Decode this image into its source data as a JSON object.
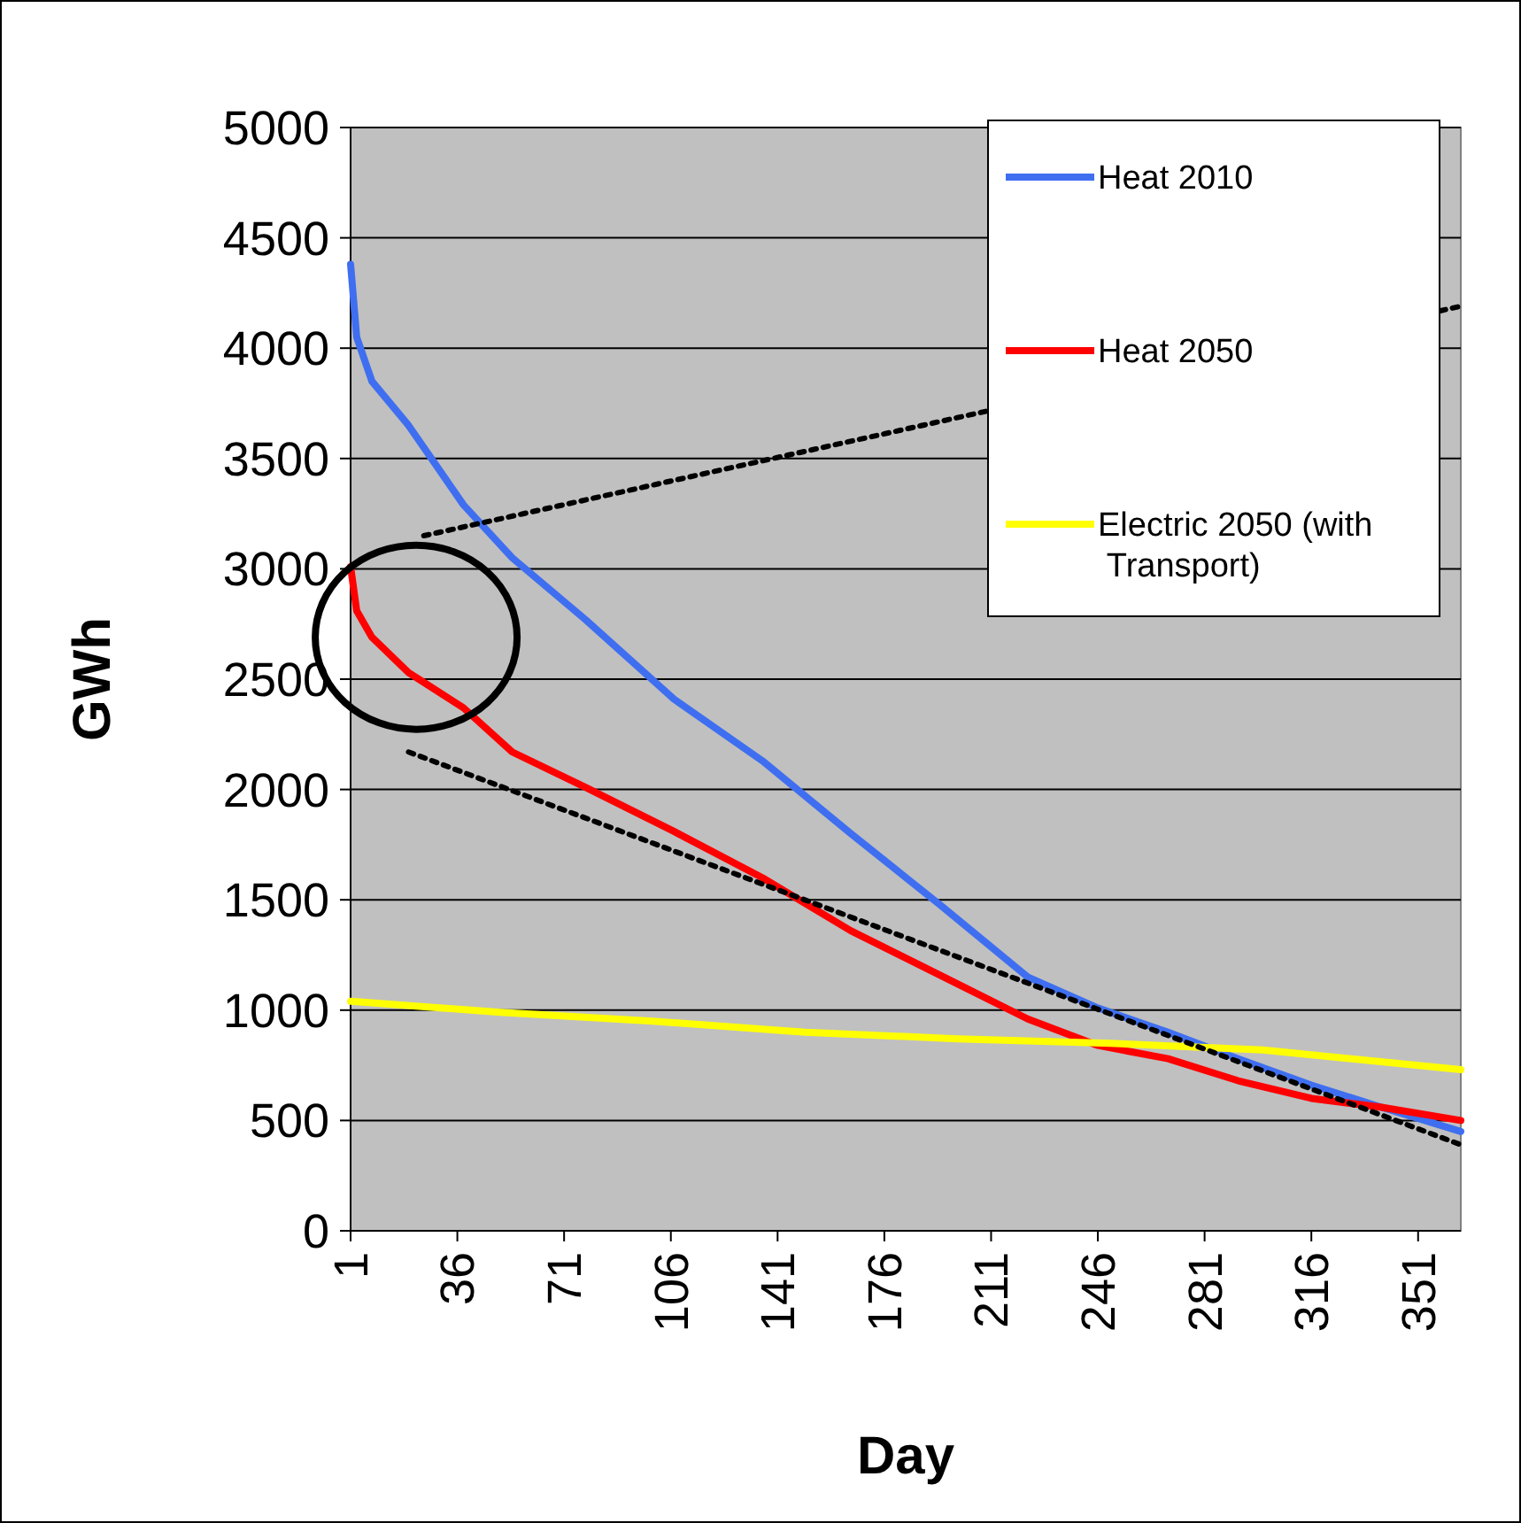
{
  "chart_data": {
    "type": "line",
    "xlabel": "Day",
    "ylabel": "GWh",
    "xlim": [
      1,
      365
    ],
    "xticks": [
      1,
      36,
      71,
      106,
      141,
      176,
      211,
      246,
      281,
      316,
      351
    ],
    "ylim": [
      0,
      5000
    ],
    "yticks": [
      0,
      500,
      1000,
      1500,
      2000,
      2500,
      3000,
      3500,
      4000,
      4500,
      5000
    ],
    "grid": "y",
    "legend": "top right",
    "series": [
      {
        "name": "Heat 2010",
        "color": "#3f6ff0",
        "x": [
          1,
          3,
          8,
          20,
          38,
          54,
          78,
          107,
          136,
          165,
          194,
          223,
          246,
          269,
          292,
          316,
          339,
          365
        ],
        "values": [
          4380,
          4050,
          3850,
          3650,
          3290,
          3050,
          2770,
          2410,
          2130,
          1800,
          1480,
          1150,
          1010,
          900,
          780,
          660,
          560,
          450
        ]
      },
      {
        "name": "Heat 2050",
        "color": "#ff0000",
        "x": [
          1,
          3,
          8,
          20,
          38,
          54,
          78,
          107,
          136,
          165,
          194,
          223,
          246,
          269,
          292,
          316,
          339,
          365
        ],
        "values": [
          3010,
          2810,
          2690,
          2530,
          2370,
          2170,
          2010,
          1810,
          1600,
          1360,
          1160,
          960,
          840,
          780,
          680,
          600,
          560,
          500
        ]
      },
      {
        "name": "Electric 2050 (with Transport)",
        "color": "#ffff00",
        "x": [
          1,
          50,
          100,
          150,
          200,
          250,
          300,
          365
        ],
        "values": [
          1040,
          990,
          950,
          900,
          870,
          850,
          820,
          730
        ]
      },
      {
        "type": "line",
        "line_style": "dotted",
        "color": "#000000",
        "x": [
          25,
          365
        ],
        "values": [
          3150,
          4190
        ]
      },
      {
        "type": "line",
        "line_style": "dotted",
        "color": "#000000",
        "x": [
          20,
          365
        ],
        "values": [
          2170,
          390
        ]
      }
    ]
  }
}
